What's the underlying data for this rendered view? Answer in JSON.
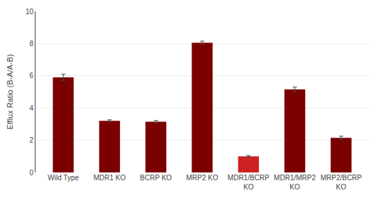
{
  "chart_data": {
    "type": "bar",
    "categories": [
      "Wild Type",
      "MDR1 KO",
      "BCRP KO",
      "MRP2 KO",
      "MDR1/BCRP\nKO",
      "MDR1/MRP2\nKO",
      "MRP2/BCRP\nKO"
    ],
    "values": [
      5.9,
      3.2,
      3.15,
      8.05,
      1.0,
      5.15,
      2.15
    ],
    "errors": [
      0.2,
      0.07,
      0.07,
      0.1,
      0.05,
      0.15,
      0.1
    ],
    "colors": [
      "#7b0000",
      "#7b0000",
      "#7b0000",
      "#7b0000",
      "#cc2222",
      "#7b0000",
      "#7b0000"
    ],
    "ylabel": "Efflux Ratio (B-A/A-B)",
    "ylim": [
      0,
      10
    ],
    "yticks": [
      0,
      2,
      4,
      6,
      8,
      10
    ],
    "grid": true
  }
}
